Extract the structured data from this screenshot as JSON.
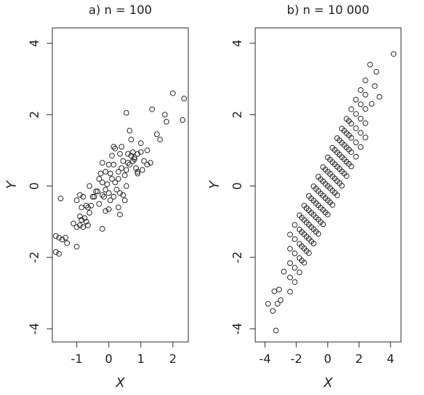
{
  "chart_data": [
    {
      "type": "scatter",
      "title": "a) n = 100",
      "xlabel": "X",
      "ylabel": "Y",
      "xlim": [
        -1.76,
        2.48
      ],
      "ylim": [
        -4.37,
        4.43
      ],
      "xticks": [
        -1,
        0,
        1,
        2
      ],
      "yticks": [
        -4,
        -2,
        0,
        2,
        4
      ],
      "color": "#222222",
      "x": [
        2.0,
        2.35,
        2.3,
        1.75,
        1.8,
        1.35,
        0.55,
        1.5,
        1.6,
        0.65,
        0.7,
        0.4,
        0.2,
        1.0,
        1.2,
        0.9,
        1.1,
        0.8,
        0.75,
        0.85,
        0.9,
        1.2,
        0.1,
        0.0,
        -0.2,
        -0.1,
        0.3,
        0.4,
        0.5,
        0.55,
        0.3,
        0.2,
        0.1,
        -0.3,
        -0.2,
        -0.1,
        0.0,
        0.15,
        0.35,
        0.5,
        0.3,
        0.35,
        0.0,
        -0.1,
        -0.2,
        -0.4,
        -0.5,
        -0.6,
        -0.8,
        -0.9,
        -1.0,
        -0.85,
        -0.7,
        -0.6,
        -0.75,
        -0.85,
        -0.9,
        -1.0,
        -0.7,
        -0.65,
        -1.1,
        -1.0,
        -1.3,
        -1.35,
        -1.45,
        -1.55,
        -1.65,
        -1.65,
        -1.55,
        -1.5,
        -0.9,
        0.7,
        0.75,
        0.8,
        0.05,
        0.15,
        -0.05,
        0.45,
        0.6,
        1.0,
        0.25,
        -0.3,
        -0.45,
        0.05,
        -0.15,
        0.65,
        0.6,
        -0.25,
        0.45,
        -0.55,
        -0.8,
        1.05,
        0.35,
        0.15,
        -0.35,
        -0.65,
        0.9,
        1.3,
        0.55,
        -0.2
      ],
      "values": [
        2.6,
        2.45,
        1.85,
        2.0,
        1.8,
        2.15,
        2.05,
        1.45,
        1.3,
        1.55,
        1.3,
        1.1,
        1.05,
        1.2,
        1.0,
        0.9,
        0.7,
        0.8,
        0.7,
        0.5,
        0.35,
        0.6,
        0.85,
        0.6,
        0.65,
        0.4,
        0.4,
        0.5,
        0.3,
        0.0,
        0.2,
        0.1,
        0.2,
        0.2,
        0.1,
        -0.1,
        -0.2,
        -0.3,
        -0.2,
        -0.4,
        -0.6,
        -0.8,
        -0.65,
        -0.7,
        -1.2,
        -0.15,
        -0.3,
        0.0,
        -0.3,
        -0.25,
        -0.4,
        -0.6,
        -0.55,
        -0.75,
        -0.9,
        -0.95,
        -1.1,
        -1.15,
        -1.0,
        -1.1,
        -1.05,
        -1.7,
        -1.6,
        -1.45,
        -1.5,
        -1.45,
        -1.4,
        -1.85,
        -1.9,
        -0.35,
        -0.85,
        0.85,
        0.95,
        0.75,
        0.35,
        0.6,
        0.05,
        0.7,
        0.9,
        0.95,
        -0.1,
        -0.5,
        -0.3,
        -0.4,
        -0.3,
        0.6,
        0.65,
        0.35,
        -0.25,
        -0.55,
        -1.15,
        0.45,
        0.9,
        1.1,
        -0.15,
        -0.6,
        0.4,
        0.65,
        0.45,
        -0.25
      ]
    },
    {
      "type": "scatter",
      "title": "b) n = 10 000",
      "xlabel": "X",
      "ylabel": "Y",
      "xlim": [
        -4.62,
        4.67
      ],
      "ylim": [
        -4.37,
        4.43
      ],
      "xticks": [
        -4,
        -2,
        0,
        2,
        4
      ],
      "yticks": [
        -4,
        -2,
        0,
        2,
        4
      ],
      "color": "#222222",
      "x": [
        -2.4,
        -2.4,
        -2.4,
        -2.4,
        -2.4,
        -2.1,
        -2.1,
        -2.1,
        -2.1,
        -2.1,
        -1.8,
        -1.8,
        -1.8,
        -1.8,
        -1.8,
        -1.5,
        -1.5,
        -1.5,
        -1.5,
        -1.5,
        -1.2,
        -1.2,
        -1.2,
        -1.2,
        -1.2,
        -0.9,
        -0.9,
        -0.9,
        -0.9,
        -0.9,
        -0.6,
        -0.6,
        -0.6,
        -0.6,
        -0.6,
        -0.3,
        -0.3,
        -0.3,
        -0.3,
        -0.3,
        0,
        0,
        0,
        0,
        0,
        0.3,
        0.3,
        0.3,
        0.3,
        0.3,
        0.6,
        0.6,
        0.6,
        0.6,
        0.6,
        0.9,
        0.9,
        0.9,
        0.9,
        0.9,
        1.2,
        1.2,
        1.2,
        1.2,
        1.2,
        1.5,
        1.5,
        1.5,
        1.5,
        1.5,
        1.8,
        1.8,
        1.8,
        1.8,
        1.8,
        2.1,
        2.1,
        2.1,
        2.1,
        2.1,
        2.4,
        2.4,
        2.4,
        2.4,
        2.4,
        -1.65,
        -1.65,
        -1.65,
        -1.65,
        -1.35,
        -1.35,
        -1.35,
        -1.35,
        -1.05,
        -1.05,
        -1.05,
        -1.05,
        -0.75,
        -0.75,
        -0.75,
        -0.75,
        -0.45,
        -0.45,
        -0.45,
        -0.45,
        -0.15,
        -0.15,
        -0.15,
        -0.15,
        0.15,
        0.15,
        0.15,
        0.15,
        0.45,
        0.45,
        0.45,
        0.45,
        0.75,
        0.75,
        0.75,
        0.75,
        1.05,
        1.05,
        1.05,
        1.05,
        1.35,
        1.35,
        1.35,
        1.35,
        4.2,
        -3.3,
        -3.8,
        -3.5,
        -3.2,
        -3.0,
        2.7,
        3.1,
        3.0,
        -3.1,
        2.8,
        -2.8,
        3.3,
        -3.4
      ],
      "values": [
        -2.96,
        -2.56,
        -2.16,
        -1.76,
        -1.36,
        -2.69,
        -2.29,
        -1.89,
        -1.49,
        -1.09,
        -2.42,
        -2.02,
        -1.62,
        -1.22,
        -0.82,
        -2.15,
        -1.75,
        -1.35,
        -0.95,
        -0.55,
        -1.88,
        -1.48,
        -1.08,
        -0.68,
        -0.28,
        -1.61,
        -1.21,
        -0.81,
        -0.41,
        -0.01,
        -1.34,
        -0.94,
        -0.54,
        -0.14,
        0.26,
        -1.07,
        -0.67,
        -0.27,
        0.13,
        0.53,
        -0.8,
        -0.4,
        0,
        0.4,
        0.8,
        -0.53,
        -0.13,
        0.27,
        0.67,
        1.07,
        -0.26,
        0.14,
        0.54,
        0.94,
        1.34,
        0.01,
        0.41,
        0.81,
        1.21,
        1.61,
        0.28,
        0.68,
        1.08,
        1.48,
        1.88,
        0.55,
        0.95,
        1.35,
        1.75,
        2.15,
        0.82,
        1.22,
        1.62,
        2.02,
        2.42,
        1.09,
        1.49,
        1.89,
        2.29,
        2.69,
        1.36,
        1.76,
        2.16,
        2.56,
        2.96,
        -2.09,
        -1.69,
        -1.29,
        -0.89,
        -1.82,
        -1.42,
        -1.02,
        -0.62,
        -1.55,
        -1.15,
        -0.75,
        -0.35,
        -1.28,
        -0.88,
        -0.48,
        -0.08,
        -1.01,
        -0.61,
        -0.21,
        0.19,
        -0.74,
        -0.34,
        0.06,
        0.46,
        -0.46,
        -0.06,
        0.34,
        0.74,
        -0.19,
        0.21,
        0.61,
        1.01,
        0.08,
        0.48,
        0.88,
        1.28,
        0.35,
        0.75,
        1.15,
        1.55,
        0.62,
        1.02,
        1.42,
        1.82,
        3.7,
        -4.05,
        -3.3,
        -3.5,
        -3.3,
        -3.2,
        3.4,
        3.2,
        2.8,
        -2.9,
        2.3,
        -2.4,
        2.5,
        -2.95
      ]
    }
  ]
}
